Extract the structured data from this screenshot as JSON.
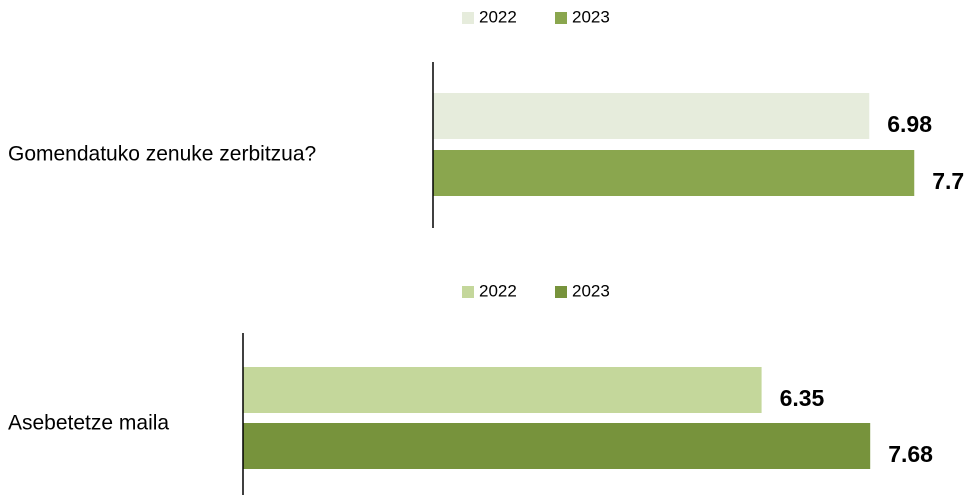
{
  "chart_data": [
    {
      "type": "barh",
      "categories": [
        "Gomendatuko zenuke zerbitzua?"
      ],
      "series": [
        {
          "name": "2022",
          "color": "#e6ecdc",
          "values": [
            6.98
          ]
        },
        {
          "name": "2023",
          "color": "#8aa64e",
          "values": [
            7.7
          ]
        }
      ],
      "xlim": [
        0,
        8
      ]
    },
    {
      "type": "barh",
      "categories": [
        "Asebetetze maila"
      ],
      "series": [
        {
          "name": "2022",
          "color": "#c4d79b",
          "values": [
            6.35
          ]
        },
        {
          "name": "2023",
          "color": "#77933c",
          "values": [
            7.68
          ]
        }
      ],
      "xlim": [
        0,
        9
      ]
    }
  ]
}
